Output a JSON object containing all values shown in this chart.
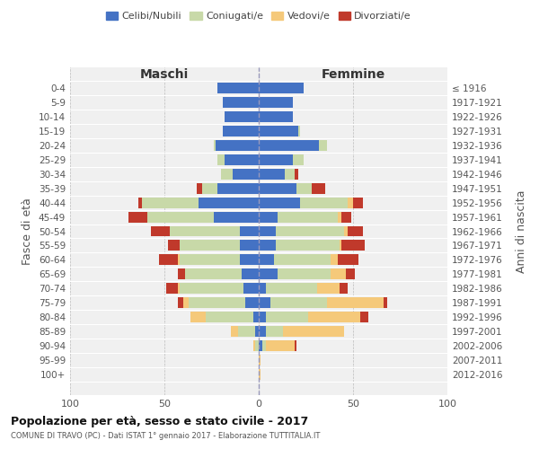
{
  "age_groups": [
    "0-4",
    "5-9",
    "10-14",
    "15-19",
    "20-24",
    "25-29",
    "30-34",
    "35-39",
    "40-44",
    "45-49",
    "50-54",
    "55-59",
    "60-64",
    "65-69",
    "70-74",
    "75-79",
    "80-84",
    "85-89",
    "90-94",
    "95-99",
    "100+"
  ],
  "birth_years": [
    "2012-2016",
    "2007-2011",
    "2002-2006",
    "1997-2001",
    "1992-1996",
    "1987-1991",
    "1982-1986",
    "1977-1981",
    "1972-1976",
    "1967-1971",
    "1962-1966",
    "1957-1961",
    "1952-1956",
    "1947-1951",
    "1942-1946",
    "1937-1941",
    "1932-1936",
    "1927-1931",
    "1922-1926",
    "1917-1921",
    "≤ 1916"
  ],
  "maschi": {
    "celibi": [
      22,
      19,
      18,
      19,
      23,
      18,
      14,
      22,
      32,
      24,
      10,
      10,
      10,
      9,
      8,
      7,
      3,
      2,
      0,
      0,
      0
    ],
    "coniugati": [
      0,
      0,
      0,
      0,
      1,
      4,
      6,
      8,
      30,
      35,
      37,
      32,
      32,
      30,
      34,
      30,
      25,
      9,
      2,
      0,
      0
    ],
    "vedovi": [
      0,
      0,
      0,
      0,
      0,
      0,
      0,
      0,
      0,
      0,
      0,
      0,
      1,
      0,
      1,
      3,
      8,
      4,
      1,
      0,
      0
    ],
    "divorziati": [
      0,
      0,
      0,
      0,
      0,
      0,
      0,
      3,
      2,
      10,
      10,
      6,
      10,
      4,
      6,
      3,
      0,
      0,
      0,
      0,
      0
    ]
  },
  "femmine": {
    "nubili": [
      24,
      18,
      18,
      21,
      32,
      18,
      14,
      20,
      22,
      10,
      9,
      9,
      8,
      10,
      4,
      6,
      4,
      4,
      2,
      0,
      0
    ],
    "coniugate": [
      0,
      0,
      0,
      1,
      4,
      6,
      5,
      8,
      25,
      32,
      36,
      34,
      30,
      28,
      27,
      30,
      22,
      9,
      2,
      0,
      0
    ],
    "vedove": [
      0,
      0,
      0,
      0,
      0,
      0,
      0,
      0,
      3,
      2,
      2,
      1,
      4,
      8,
      12,
      30,
      28,
      32,
      15,
      1,
      1
    ],
    "divorziate": [
      0,
      0,
      0,
      0,
      0,
      0,
      2,
      7,
      5,
      5,
      8,
      12,
      11,
      5,
      4,
      2,
      4,
      0,
      1,
      0,
      0
    ]
  },
  "colors": {
    "celibi_nubili": "#4472C4",
    "coniugati": "#C8D9A8",
    "vedovi": "#F5C97A",
    "divorziati": "#C0392B"
  },
  "xlim": 100,
  "title": "Popolazione per età, sesso e stato civile - 2017",
  "subtitle": "COMUNE DI TRAVO (PC) - Dati ISTAT 1° gennaio 2017 - Elaborazione TUTTITALIA.IT",
  "ylabel_left": "Fasce di età",
  "ylabel_right": "Anni di nascita",
  "xlabel_left": "Maschi",
  "xlabel_right": "Femmine",
  "legend_labels": [
    "Celibi/Nubili",
    "Coniugati/e",
    "Vedovi/e",
    "Divorziati/e"
  ],
  "bg_color": "#f0f0f0"
}
